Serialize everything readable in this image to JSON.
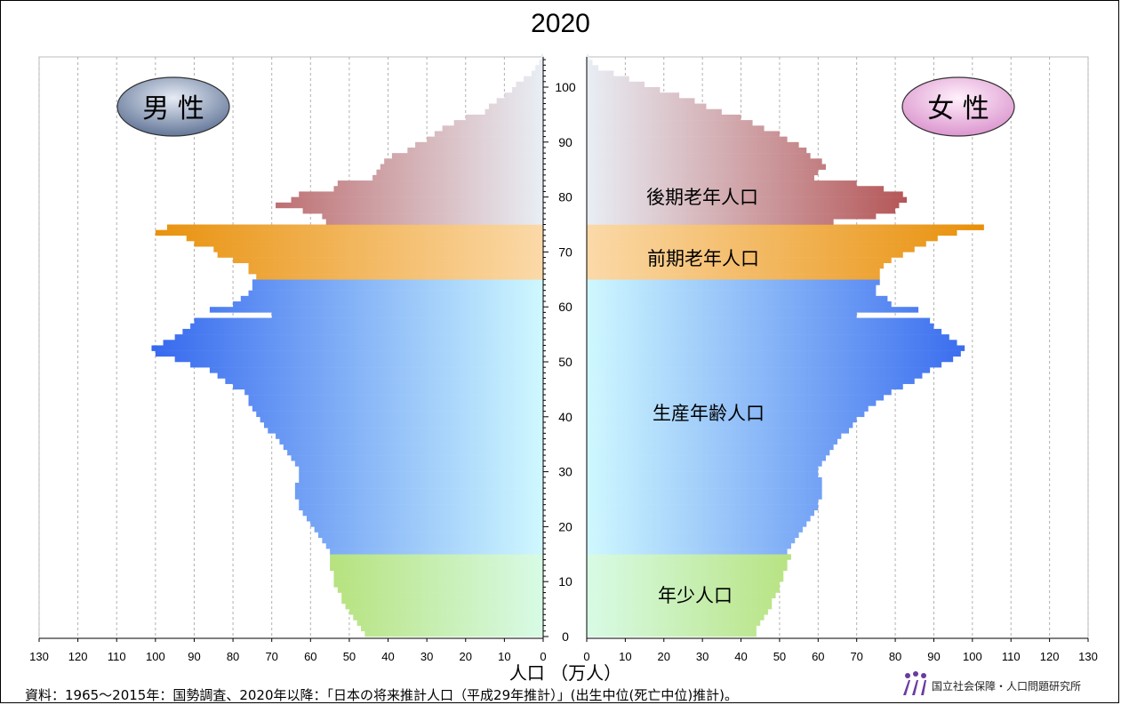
{
  "chart_data": {
    "type": "bar",
    "title": "2020",
    "subtype": "population-pyramid",
    "xlabel": "人口 （万人）",
    "ylabel": "",
    "x_ticks": [
      "130",
      "120",
      "110",
      "100",
      "90",
      "80",
      "70",
      "60",
      "50",
      "40",
      "30",
      "20",
      "10",
      "0"
    ],
    "x_ticks_right": [
      "0",
      "10",
      "20",
      "30",
      "40",
      "50",
      "60",
      "70",
      "80",
      "90",
      "100",
      "110",
      "120",
      "130"
    ],
    "xlim": [
      0,
      130
    ],
    "y_ticks": [
      "0",
      "10",
      "20",
      "30",
      "40",
      "50",
      "60",
      "70",
      "80",
      "90",
      "100"
    ],
    "ylim": [
      0,
      105
    ],
    "grid": true,
    "gender_labels": {
      "male": "男 性",
      "female": "女 性"
    },
    "age_groups": [
      {
        "name": "年少人口",
        "from": 0,
        "to": 14,
        "color": "#99cc22"
      },
      {
        "name": "生産年齢人口",
        "from": 15,
        "to": 64,
        "color": "#3366ee"
      },
      {
        "name": "前期老年人口",
        "from": 65,
        "to": 74,
        "color": "#e8900a"
      },
      {
        "name": "後期老年人口",
        "from": 75,
        "to": 105,
        "color": "#a83232"
      }
    ],
    "ages": [
      0,
      1,
      2,
      3,
      4,
      5,
      6,
      7,
      8,
      9,
      10,
      11,
      12,
      13,
      14,
      15,
      16,
      17,
      18,
      19,
      20,
      21,
      22,
      23,
      24,
      25,
      26,
      27,
      28,
      29,
      30,
      31,
      32,
      33,
      34,
      35,
      36,
      37,
      38,
      39,
      40,
      41,
      42,
      43,
      44,
      45,
      46,
      47,
      48,
      49,
      50,
      51,
      52,
      53,
      54,
      55,
      56,
      57,
      58,
      59,
      60,
      61,
      62,
      63,
      64,
      65,
      66,
      67,
      68,
      69,
      70,
      71,
      72,
      73,
      74,
      75,
      76,
      77,
      78,
      79,
      80,
      81,
      82,
      83,
      84,
      85,
      86,
      87,
      88,
      89,
      90,
      91,
      92,
      93,
      94,
      95,
      96,
      97,
      98,
      99,
      100,
      101,
      102,
      103,
      104,
      105
    ],
    "series": [
      {
        "name": "男 性",
        "values": [
          46,
          47,
          48,
          49,
          50,
          51,
          52,
          52,
          53,
          54,
          54,
          54,
          55,
          55,
          55,
          55,
          56,
          57,
          58,
          59,
          60,
          61,
          62,
          63,
          63,
          64,
          64,
          64,
          63,
          63,
          63,
          64,
          65,
          66,
          67,
          68,
          69,
          71,
          72,
          73,
          74,
          75,
          76,
          76,
          77,
          80,
          82,
          84,
          86,
          91,
          95,
          100,
          101,
          98,
          95,
          93,
          91,
          90,
          70,
          86,
          80,
          78,
          76,
          75,
          75,
          74,
          76,
          76,
          80,
          84,
          85,
          90,
          92,
          100,
          97,
          56,
          57,
          62,
          69,
          65,
          63,
          54,
          53,
          44,
          43,
          42,
          41,
          39,
          35,
          33,
          30,
          28,
          26,
          23,
          20,
          15,
          14,
          12,
          10,
          8,
          7,
          5,
          3,
          2,
          1,
          0.5
        ]
      },
      {
        "name": "女 性",
        "values": [
          44,
          44,
          45,
          46,
          47,
          48,
          48,
          49,
          50,
          50,
          51,
          51,
          52,
          52,
          53,
          52,
          53,
          54,
          55,
          56,
          57,
          58,
          59,
          60,
          60,
          61,
          61,
          61,
          61,
          60,
          60,
          61,
          62,
          63,
          64,
          65,
          66,
          68,
          69,
          70,
          72,
          73,
          75,
          77,
          79,
          82,
          85,
          87,
          89,
          92,
          95,
          97,
          98,
          96,
          94,
          92,
          90,
          89,
          70,
          86,
          79,
          78,
          75,
          75,
          76,
          76,
          76,
          77,
          79,
          82,
          85,
          88,
          91,
          96,
          103,
          64,
          75,
          80,
          81,
          83,
          82,
          77,
          70,
          59,
          60,
          62,
          61,
          58,
          57,
          55,
          52,
          50,
          46,
          43,
          40,
          35,
          31,
          28,
          24,
          19,
          15,
          11,
          7,
          3,
          1.5,
          0.5
        ]
      }
    ]
  },
  "source_note": "資料：1965～2015年：国勢調査、2020年以降：「日本の将来推計人口（平成29年推計）」(出生中位(死亡中位)推計)。",
  "logo_text": "国立社会保障・人口問題研究所"
}
